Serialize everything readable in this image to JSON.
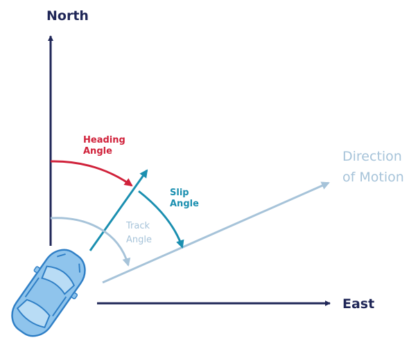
{
  "labels": {
    "north": "North",
    "east": "East",
    "heading_line1": "Heading",
    "heading_line2": "Angle",
    "slip_line1": "Slip",
    "slip_line2": "Angle",
    "track_line1": "Track",
    "track_line2": "Angle",
    "motion_line1": "Direction",
    "motion_line2": "of Motion"
  },
  "colors": {
    "axis": "#1f2657",
    "heading": "#d0213a",
    "slip": "#1a8fb0",
    "track": "#a6c3d9",
    "car_fill": "#8fc4ec",
    "car_stroke": "#2f7fc6"
  }
}
